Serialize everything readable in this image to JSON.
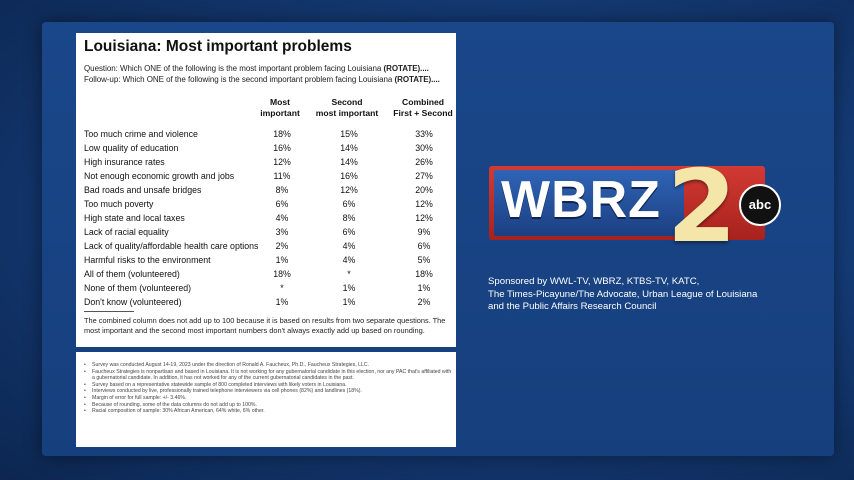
{
  "title": "Louisiana: Most important problems",
  "question_line": "Question: Which ONE of the following is the most important problem facing Louisiana",
  "question_tag": "(ROTATE)....",
  "followup_line": "Follow-up: Which ONE of the following is the second important problem facing Louisiana",
  "followup_tag": "(ROTATE)....",
  "columns": {
    "c1_l1": "Most",
    "c1_l2": "important",
    "c2_l1": "Second",
    "c2_l2": "most important",
    "c3_l1": "Combined",
    "c3_l2": "First + Second"
  },
  "rows": [
    {
      "label": "Too much crime and violence",
      "first": "18%",
      "second": "15%",
      "combined": "33%"
    },
    {
      "label": "Low quality of education",
      "first": "16%",
      "second": "14%",
      "combined": "30%"
    },
    {
      "label": "High insurance rates",
      "first": "12%",
      "second": "14%",
      "combined": "26%"
    },
    {
      "label": "Not enough economic growth and jobs",
      "first": "11%",
      "second": "16%",
      "combined": "27%"
    },
    {
      "label": "Bad roads and unsafe bridges",
      "first": "8%",
      "second": "12%",
      "combined": "20%"
    },
    {
      "label": "Too much poverty",
      "first": "6%",
      "second": "6%",
      "combined": "12%"
    },
    {
      "label": "High state and local taxes",
      "first": "4%",
      "second": "8%",
      "combined": "12%"
    },
    {
      "label": "Lack of racial equality",
      "first": "3%",
      "second": "6%",
      "combined": "9%"
    },
    {
      "label": "Lack of quality/affordable health care options",
      "first": "2%",
      "second": "4%",
      "combined": "6%"
    },
    {
      "label": "Harmful risks to the environment",
      "first": "1%",
      "second": "4%",
      "combined": "5%"
    },
    {
      "label": "All of them (volunteered)",
      "first": "18%",
      "second": "*",
      "combined": "18%"
    },
    {
      "label": "None of them (volunteered)",
      "first": "*",
      "second": "1%",
      "combined": "1%"
    },
    {
      "label": "Don't know (volunteered)",
      "first": "1%",
      "second": "1%",
      "combined": "2%"
    }
  ],
  "footnote": "The combined column does not add up to 100 because it is based on results from two separate questions. The most important and the second most important numbers don't always exactly add up based on rounding.",
  "methodology": [
    "Survey was conducted August 14-19, 2023 under the direction of Ronald A. Faucheux, Ph.D., Faucheux Strategies, LLC.",
    "Faucheux Strategies is nonpartisan and based in Louisiana. It is not working for any gubernatorial candidate in this election, nor any PAC that's affiliated with a gubernatorial candidate. In addition, it has not worked for any of the current gubernatorial candidates in the past.",
    "Survey based on a representative statewide sample of 800 completed interviews with likely voters in Louisiana.",
    "Interviews conducted by live, professionally trained telephone interviewers via cell phones (82%) and landlines (18%).",
    "Margin of error for full sample: +/- 3.46%.",
    "Because of rounding, some of the data columns do not add up to 100%.",
    "Racial composition of sample: 30% African American, 64% white, 6% other."
  ],
  "logo": {
    "letters": "WBRZ",
    "number": "2",
    "network": "abc"
  },
  "sponsor_lines": [
    "Sponsored by WWL-TV, WBRZ, KTBS-TV, KATC,",
    "The Times-Picayune/The Advocate, Urban League of Louisiana",
    "and the Public Affairs Research Council"
  ]
}
